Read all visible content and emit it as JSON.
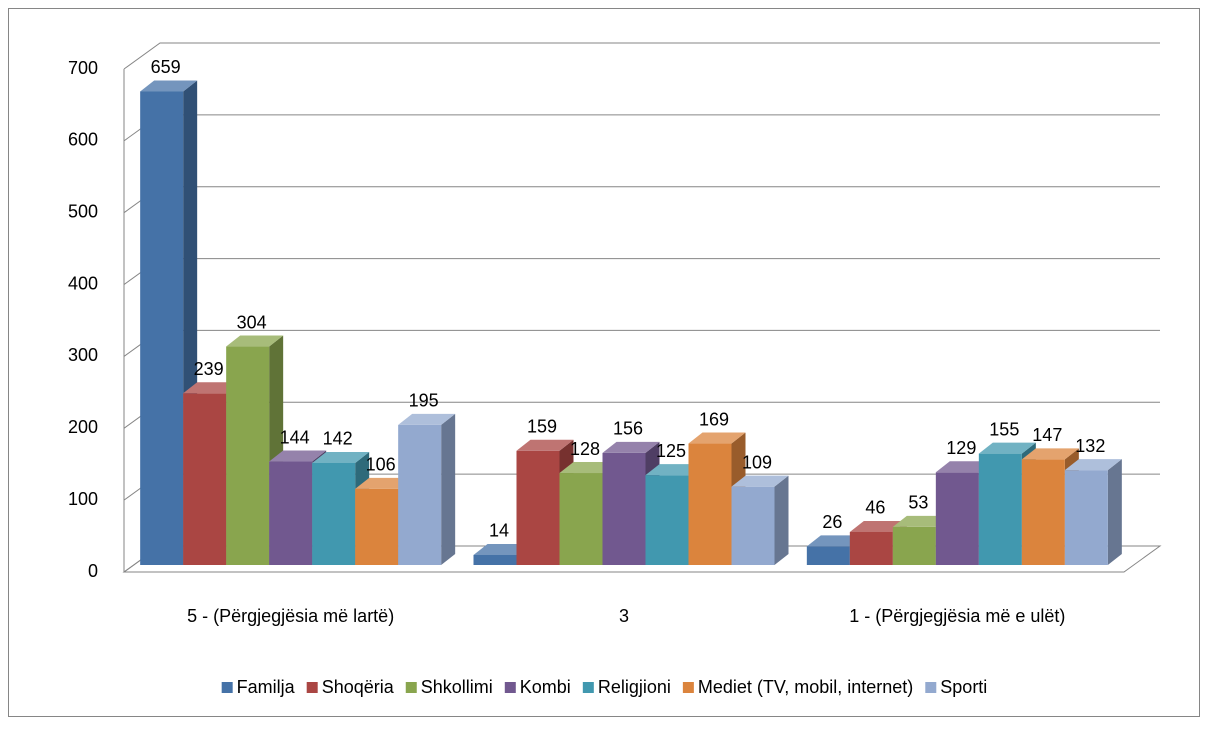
{
  "chart_data": {
    "type": "bar3d",
    "categories": [
      "5 - (Përgjegjësia më lartë)",
      "3",
      "1 - (Përgjegjësia më e ulët)"
    ],
    "series": [
      {
        "name": "Familja",
        "color": "#4572A7",
        "values": [
          659,
          14,
          26
        ]
      },
      {
        "name": "Shoqëria",
        "color": "#AA4643",
        "values": [
          239,
          159,
          46
        ]
      },
      {
        "name": "Shkollimi",
        "color": "#89A54E",
        "values": [
          304,
          128,
          53
        ]
      },
      {
        "name": "Kombi",
        "color": "#71588F",
        "values": [
          144,
          156,
          129
        ]
      },
      {
        "name": "Religjioni",
        "color": "#4198AF",
        "values": [
          142,
          125,
          155
        ]
      },
      {
        "name": "Mediet (TV, mobil, internet)",
        "color": "#DB843D",
        "values": [
          106,
          169,
          147
        ]
      },
      {
        "name": "Sporti",
        "color": "#93A9CF",
        "values": [
          195,
          109,
          132
        ]
      }
    ],
    "ylim": [
      0,
      700
    ],
    "yticks": [
      0,
      100,
      200,
      300,
      400,
      500,
      600,
      700
    ],
    "grid": true,
    "legend": "bottom"
  }
}
